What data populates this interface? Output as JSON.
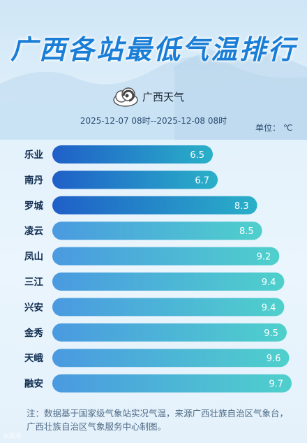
{
  "header": {
    "title": "广西各站最低气温排行",
    "logo_text": "广西天气",
    "time_range": "2025-12-07 08时--2025-12-08 08时",
    "unit_label": "单位：",
    "unit_value": "℃"
  },
  "footnote": "注：数据基于国家级气象站实况气温，来源广西壮族自治区气象台，广西壮族自治区气象服务中心制图。",
  "watermark": "大风号",
  "colors": {
    "title": "#1a7ed6",
    "bar_dark_start": "#1f5fc8",
    "bar_dark_end": "#2ab0c8",
    "bar_light_start": "#4a9ae0",
    "bar_light_end": "#4fd0cc",
    "label": "#0d2a4d"
  },
  "chart_data": {
    "type": "bar",
    "orientation": "horizontal",
    "title": "",
    "xlabel": "",
    "ylabel": "",
    "categories": [
      "乐业",
      "南丹",
      "罗城",
      "凌云",
      "凤山",
      "三江",
      "兴安",
      "金秀",
      "天峨",
      "融安"
    ],
    "values": [
      6.5,
      6.7,
      8.3,
      8.5,
      9.2,
      9.4,
      9.4,
      9.5,
      9.6,
      9.7
    ],
    "value_labels": [
      "6.5",
      "6.7",
      "8.3",
      "8.5",
      "9.2",
      "9.4",
      "9.4",
      "9.5",
      "9.6",
      "9.7"
    ],
    "highlight_count": 3,
    "grid": false,
    "legend": "none"
  }
}
